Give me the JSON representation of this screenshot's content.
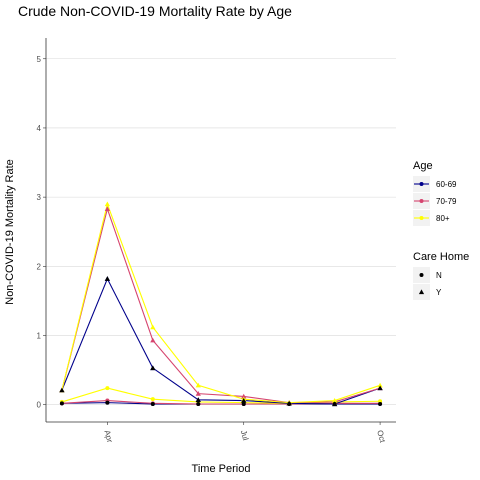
{
  "chart_data": {
    "type": "line",
    "title": "Crude Non-COVID-19 Mortality Rate by Age",
    "xlabel": "Time Period",
    "ylabel": "Non-COVID-19 Mortality Rate",
    "ylim": [
      -0.25,
      5.3
    ],
    "yticks": [
      0,
      1,
      2,
      3,
      4,
      5
    ],
    "x": [
      1,
      2,
      3,
      4,
      5,
      6,
      7,
      8
    ],
    "xlim": [
      0.65,
      8.35
    ],
    "xticks": [
      {
        "x": 2,
        "label": "Apr"
      },
      {
        "x": 5,
        "label": "Jul"
      },
      {
        "x": 8,
        "label": "Oct"
      }
    ],
    "grid": true,
    "legend_position": "right",
    "age_legend_title": "Age",
    "care_legend_title": "Care Home",
    "care_levels": [
      "N",
      "Y"
    ],
    "series": [
      {
        "name": "60-69",
        "care": "Y",
        "color": "#00008B",
        "values": [
          0.21,
          1.82,
          0.53,
          0.07,
          0.06,
          0.02,
          0.01,
          0.24
        ]
      },
      {
        "name": "70-79",
        "care": "Y",
        "color": "#D6456F",
        "values": [
          0.21,
          2.83,
          0.93,
          0.16,
          0.12,
          0.03,
          0.04,
          0.24
        ]
      },
      {
        "name": "80+",
        "care": "Y",
        "color": "#FFFF00",
        "values": [
          0.21,
          2.9,
          1.12,
          0.28,
          0.08,
          0.03,
          0.06,
          0.28
        ]
      },
      {
        "name": "60-69",
        "care": "N",
        "color": "#00008B",
        "values": [
          0.02,
          0.03,
          0.01,
          0.01,
          0.01,
          0.01,
          0.01,
          0.01
        ]
      },
      {
        "name": "70-79",
        "care": "N",
        "color": "#D6456F",
        "values": [
          0.02,
          0.06,
          0.02,
          0.01,
          0.01,
          0.01,
          0.02,
          0.02
        ]
      },
      {
        "name": "80+",
        "care": "N",
        "color": "#FFFF00",
        "values": [
          0.04,
          0.24,
          0.08,
          0.04,
          0.03,
          0.02,
          0.04,
          0.05
        ]
      }
    ],
    "age_legend": [
      {
        "label": "60-69",
        "color": "#00008B"
      },
      {
        "label": "70-79",
        "color": "#D6456F"
      },
      {
        "label": "80+",
        "color": "#FFFF00"
      }
    ]
  }
}
